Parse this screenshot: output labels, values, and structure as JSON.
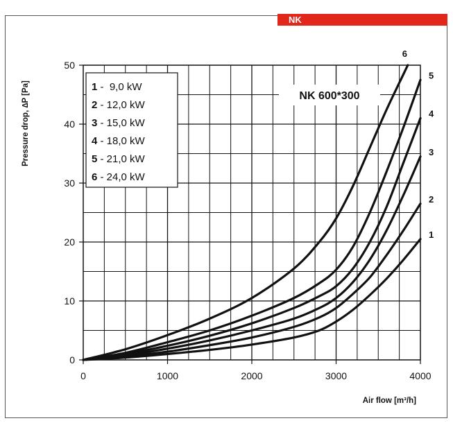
{
  "header": {
    "tab_label": "NK",
    "tab_color": "#e1261c"
  },
  "chart_data": {
    "type": "line",
    "title": "NK 600*300",
    "xlabel": "Air flow [m³/h]",
    "ylabel": "Pressure drop, ∆P [Pa]",
    "xlim": [
      0,
      4000
    ],
    "ylim": [
      0,
      50
    ],
    "x_ticks": [
      0,
      1000,
      2000,
      3000,
      4000
    ],
    "y_ticks": [
      0,
      10,
      20,
      30,
      40,
      50
    ],
    "grid": true,
    "legend": {
      "placement": "top-left",
      "entries": [
        {
          "num": "1",
          "text": " -  9,0 kW"
        },
        {
          "num": "2",
          "text": " - 12,0 kW"
        },
        {
          "num": "3",
          "text": " - 15,0 kW"
        },
        {
          "num": "4",
          "text": " - 18,0 kW"
        },
        {
          "num": "5",
          "text": " - 21,0 kW"
        },
        {
          "num": "6",
          "text": " - 24,0 kW"
        }
      ]
    },
    "series": [
      {
        "name": "1",
        "x": [
          0,
          500,
          1000,
          1500,
          2000,
          2500,
          2800,
          3000,
          3200,
          3400,
          3600,
          3800,
          4000
        ],
        "y": [
          0,
          0.4,
          1.0,
          1.7,
          2.6,
          3.8,
          5.0,
          6.5,
          8.5,
          11.0,
          13.8,
          17.0,
          20.5
        ]
      },
      {
        "name": "2",
        "x": [
          0,
          500,
          1000,
          1500,
          2000,
          2500,
          2800,
          3000,
          3200,
          3400,
          3600,
          3800,
          4000
        ],
        "y": [
          0,
          0.6,
          1.4,
          2.5,
          3.8,
          5.6,
          7.2,
          8.8,
          11.2,
          14.0,
          17.8,
          22.0,
          26.5
        ]
      },
      {
        "name": "3",
        "x": [
          0,
          500,
          1000,
          1500,
          2000,
          2500,
          2800,
          3000,
          3200,
          3400,
          3600,
          3800,
          4000
        ],
        "y": [
          0,
          0.8,
          1.9,
          3.3,
          5.0,
          7.0,
          8.8,
          10.5,
          13.2,
          17.0,
          22.0,
          28.0,
          34.5
        ]
      },
      {
        "name": "4",
        "x": [
          0,
          500,
          1000,
          1500,
          2000,
          2500,
          2800,
          3000,
          3200,
          3400,
          3600,
          3800,
          4000
        ],
        "y": [
          0,
          1.0,
          2.4,
          4.1,
          6.2,
          8.8,
          10.8,
          12.5,
          15.5,
          20.0,
          26.0,
          33.5,
          41.0
        ]
      },
      {
        "name": "5",
        "x": [
          0,
          500,
          1000,
          1500,
          2000,
          2500,
          2800,
          3000,
          3200,
          3400,
          3600,
          3800,
          4000
        ],
        "y": [
          0,
          1.2,
          3.0,
          5.0,
          7.5,
          10.5,
          13.0,
          15.3,
          19.2,
          25.0,
          32.0,
          39.5,
          47.5
        ]
      },
      {
        "name": "6",
        "x": [
          0,
          500,
          1000,
          1500,
          2000,
          2500,
          2800,
          3000,
          3200,
          3400,
          3600,
          3800,
          3850
        ],
        "y": [
          0,
          1.8,
          4.2,
          7.0,
          10.5,
          15.5,
          20.0,
          24.0,
          29.5,
          36.0,
          42.5,
          48.5,
          50.0
        ]
      }
    ],
    "curve_labels": [
      {
        "text": "1",
        "at_x": 4000,
        "at_y": 20.5
      },
      {
        "text": "2",
        "at_x": 4000,
        "at_y": 26.5
      },
      {
        "text": "3",
        "at_x": 4000,
        "at_y": 34.5
      },
      {
        "text": "4",
        "at_x": 4000,
        "at_y": 41.0
      },
      {
        "text": "5",
        "at_x": 4000,
        "at_y": 47.5
      },
      {
        "text": "6",
        "at_x": 3850,
        "at_y": 50.0
      }
    ]
  }
}
